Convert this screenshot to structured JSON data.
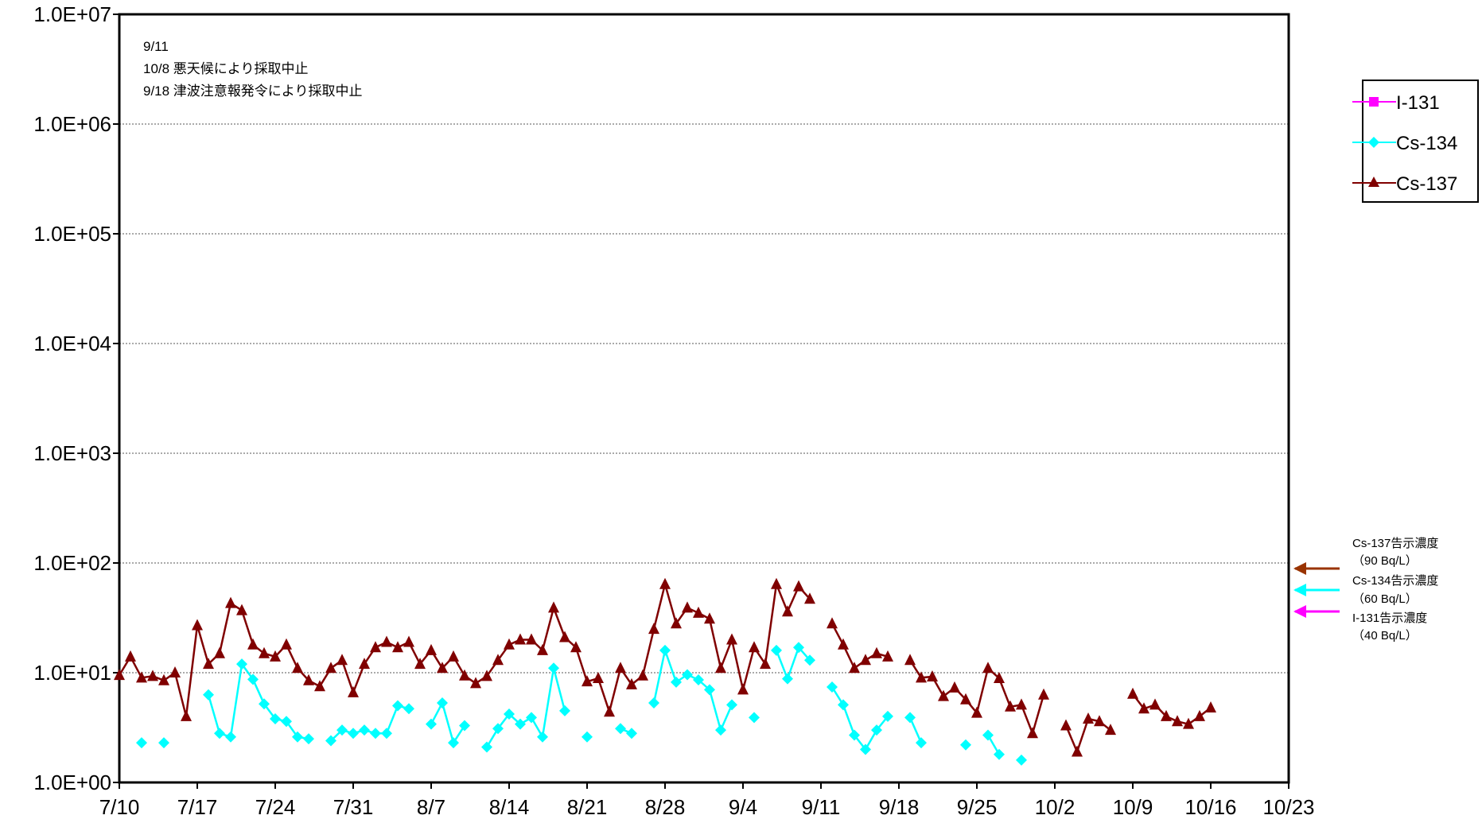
{
  "chart_data": {
    "type": "line",
    "y_scale": "log",
    "ylim": [
      1,
      10000000
    ],
    "y_ticks": [
      "1.0E+00",
      "1.0E+01",
      "1.0E+02",
      "1.0E+03",
      "1.0E+04",
      "1.0E+05",
      "1.0E+06",
      "1.0E+07"
    ],
    "x_ticks": [
      "7/10",
      "7/17",
      "7/24",
      "7/31",
      "8/7",
      "8/14",
      "8/21",
      "8/28",
      "9/4",
      "9/11",
      "9/18",
      "9/25",
      "10/2",
      "10/9",
      "10/16",
      "10/23"
    ],
    "grid": "horizontal dotted",
    "legend_position": "right",
    "notes": [
      "9/11",
      "10/8 悪天候により採取中止",
      "9/18 津波注意報発令により採取中止"
    ],
    "series": [
      {
        "name": "I-131",
        "color": "#ff00ff",
        "marker": "square",
        "points": []
      },
      {
        "name": "Cs-134",
        "color": "#00ffff",
        "marker": "diamond",
        "points": [
          [
            "7/12",
            2.3
          ],
          [
            "7/14",
            2.3
          ],
          [
            "7/18",
            6.3
          ],
          [
            "7/19",
            2.8
          ],
          [
            "7/20",
            2.6
          ],
          [
            "7/21",
            12
          ],
          [
            "7/22",
            8.7
          ],
          [
            "7/23",
            5.2
          ],
          [
            "7/24",
            3.8
          ],
          [
            "7/25",
            3.6
          ],
          [
            "7/26",
            2.6
          ],
          [
            "7/27",
            2.5
          ],
          [
            "7/29",
            2.4
          ],
          [
            "7/30",
            3.0
          ],
          [
            "7/31",
            2.8
          ],
          [
            "8/1",
            3.0
          ],
          [
            "8/2",
            2.8
          ],
          [
            "8/3",
            2.8
          ],
          [
            "8/4",
            5.0
          ],
          [
            "8/5",
            4.7
          ],
          [
            "8/7",
            3.4
          ],
          [
            "8/8",
            5.3
          ],
          [
            "8/9",
            2.3
          ],
          [
            "8/10",
            3.3
          ],
          [
            "8/12",
            2.1
          ],
          [
            "8/13",
            3.1
          ],
          [
            "8/14",
            4.2
          ],
          [
            "8/15",
            3.4
          ],
          [
            "8/16",
            3.9
          ],
          [
            "8/17",
            2.6
          ],
          [
            "8/18",
            11
          ],
          [
            "8/19",
            4.5
          ],
          [
            "8/21",
            2.6
          ],
          [
            "8/24",
            3.1
          ],
          [
            "8/25",
            2.8
          ],
          [
            "8/27",
            5.3
          ],
          [
            "8/28",
            16
          ],
          [
            "8/29",
            8.2
          ],
          [
            "8/30",
            9.6
          ],
          [
            "8/31",
            8.6
          ],
          [
            "9/1",
            7.0
          ],
          [
            "9/2",
            3.0
          ],
          [
            "9/3",
            5.1
          ],
          [
            "9/5",
            3.9
          ],
          [
            "9/7",
            16
          ],
          [
            "9/8",
            8.8
          ],
          [
            "9/9",
            17
          ],
          [
            "9/10",
            13
          ],
          [
            "9/12",
            7.4
          ],
          [
            "9/13",
            5.1
          ],
          [
            "9/14",
            2.7
          ],
          [
            "9/15",
            2.0
          ],
          [
            "9/16",
            3.0
          ],
          [
            "9/17",
            4.0
          ],
          [
            "9/19",
            3.9
          ],
          [
            "9/20",
            2.3
          ],
          [
            "9/24",
            2.2
          ],
          [
            "9/26",
            2.7
          ],
          [
            "9/27",
            1.8
          ],
          [
            "9/29",
            1.6
          ]
        ]
      },
      {
        "name": "Cs-137",
        "color": "#800000",
        "marker": "triangle",
        "points": [
          [
            "7/10",
            9.5
          ],
          [
            "7/11",
            14
          ],
          [
            "7/12",
            9.0
          ],
          [
            "7/13",
            9.3
          ],
          [
            "7/14",
            8.5
          ],
          [
            "7/15",
            10
          ],
          [
            "7/16",
            4.0
          ],
          [
            "7/17",
            27
          ],
          [
            "7/18",
            12
          ],
          [
            "7/19",
            15
          ],
          [
            "7/20",
            43
          ],
          [
            "7/21",
            37
          ],
          [
            "7/22",
            18
          ],
          [
            "7/23",
            15
          ],
          [
            "7/24",
            14
          ],
          [
            "7/25",
            18
          ],
          [
            "7/26",
            11
          ],
          [
            "7/27",
            8.5
          ],
          [
            "7/28",
            7.5
          ],
          [
            "7/29",
            11
          ],
          [
            "7/30",
            13
          ],
          [
            "7/31",
            6.6
          ],
          [
            "8/1",
            12
          ],
          [
            "8/2",
            17
          ],
          [
            "8/3",
            19
          ],
          [
            "8/4",
            17
          ],
          [
            "8/5",
            19
          ],
          [
            "8/6",
            12
          ],
          [
            "8/7",
            16
          ],
          [
            "8/8",
            11
          ],
          [
            "8/9",
            14
          ],
          [
            "8/10",
            9.4
          ],
          [
            "8/11",
            8.0
          ],
          [
            "8/12",
            9.3
          ],
          [
            "8/13",
            13
          ],
          [
            "8/14",
            18
          ],
          [
            "8/15",
            20
          ],
          [
            "8/16",
            20
          ],
          [
            "8/17",
            16
          ],
          [
            "8/18",
            39
          ],
          [
            "8/19",
            21
          ],
          [
            "8/20",
            17
          ],
          [
            "8/21",
            8.3
          ],
          [
            "8/22",
            8.9
          ],
          [
            "8/23",
            4.4
          ],
          [
            "8/24",
            11
          ],
          [
            "8/25",
            7.8
          ],
          [
            "8/26",
            9.4
          ],
          [
            "8/27",
            25
          ],
          [
            "8/28",
            64
          ],
          [
            "8/29",
            28
          ],
          [
            "8/30",
            39
          ],
          [
            "8/31",
            35
          ],
          [
            "9/1",
            31
          ],
          [
            "9/2",
            11
          ],
          [
            "9/3",
            20
          ],
          [
            "9/4",
            7.0
          ],
          [
            "9/5",
            17
          ],
          [
            "9/6",
            12
          ],
          [
            "9/7",
            64
          ],
          [
            "9/8",
            36
          ],
          [
            "9/9",
            61
          ],
          [
            "9/10",
            47
          ],
          null,
          [
            "9/12",
            28
          ],
          [
            "9/13",
            18
          ],
          [
            "9/14",
            11
          ],
          [
            "9/15",
            13
          ],
          [
            "9/16",
            15
          ],
          [
            "9/17",
            14
          ],
          null,
          [
            "9/19",
            13
          ],
          [
            "9/20",
            9.0
          ],
          [
            "9/21",
            9.2
          ],
          [
            "9/22",
            6.1
          ],
          [
            "9/23",
            7.3
          ],
          [
            "9/24",
            5.7
          ],
          [
            "9/25",
            4.3
          ],
          [
            "9/26",
            11
          ],
          [
            "9/27",
            8.9
          ],
          [
            "9/28",
            4.9
          ],
          [
            "9/29",
            5.1
          ],
          [
            "9/30",
            2.8
          ],
          [
            "10/1",
            6.3
          ],
          null,
          [
            "10/3",
            3.3
          ],
          [
            "10/4",
            1.9
          ],
          [
            "10/5",
            3.8
          ],
          [
            "10/6",
            3.6
          ],
          [
            "10/7",
            3.0
          ],
          null,
          [
            "10/9",
            6.4
          ],
          [
            "10/10",
            4.7
          ],
          [
            "10/11",
            5.1
          ],
          [
            "10/12",
            4.0
          ],
          [
            "10/13",
            3.6
          ],
          [
            "10/14",
            3.4
          ],
          [
            "10/15",
            4.0
          ],
          [
            "10/16",
            4.8
          ]
        ]
      }
    ],
    "reference_limits": [
      {
        "label": "Cs-137告示濃度",
        "value_text": "（90  Bq/L）",
        "value": 90,
        "color": "#993300"
      },
      {
        "label": "Cs-134告示濃度",
        "value_text": "（60  Bq/L）",
        "value": 60,
        "color": "#00ffff"
      },
      {
        "label": "I-131告示濃度",
        "value_text": "（40  Bq/L）",
        "value": 40,
        "color": "#ff00ff"
      }
    ]
  }
}
